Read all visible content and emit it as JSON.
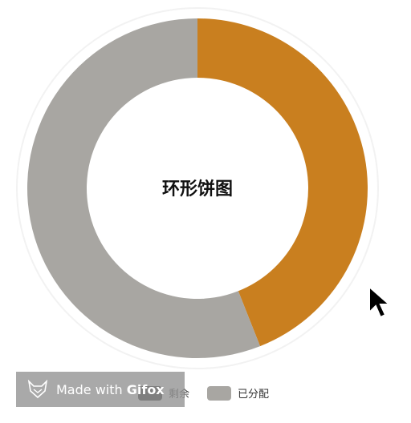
{
  "chart_data": {
    "type": "pie",
    "variant": "donut",
    "title": "环形饼图",
    "series": [
      {
        "name": "剩余",
        "value": 44,
        "color": "#c97f1f"
      },
      {
        "name": "已分配",
        "value": 56,
        "color": "#a8a6a2"
      }
    ],
    "legend_position": "bottom"
  },
  "watermark": {
    "text_prefix": "Made with",
    "text_brand": "Gifox"
  },
  "cursor_icon": "arrow-cursor-icon"
}
